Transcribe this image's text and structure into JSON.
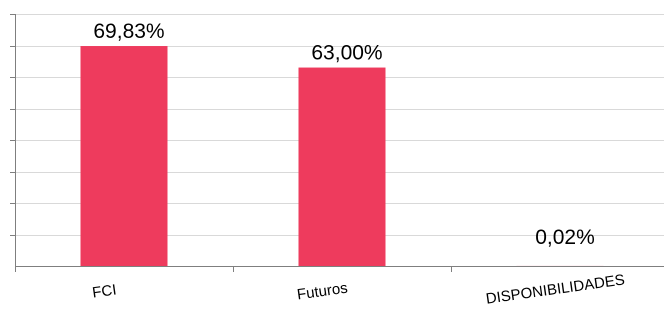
{
  "colors": {
    "bar": "#EE3B5D",
    "grid": "#D9D9D9",
    "axis": "#7F7F7F"
  },
  "chart_data": {
    "type": "bar",
    "categories": [
      "FCI",
      "Futuros",
      "DISPONIBILIDADES"
    ],
    "values": [
      69.83,
      63.0,
      0.02
    ],
    "value_labels": [
      "69,83%",
      "63,00%",
      "0,02%"
    ],
    "ylim": [
      0,
      80
    ],
    "grid": true,
    "legend": "none",
    "x_label_rotation_deg": -8
  }
}
